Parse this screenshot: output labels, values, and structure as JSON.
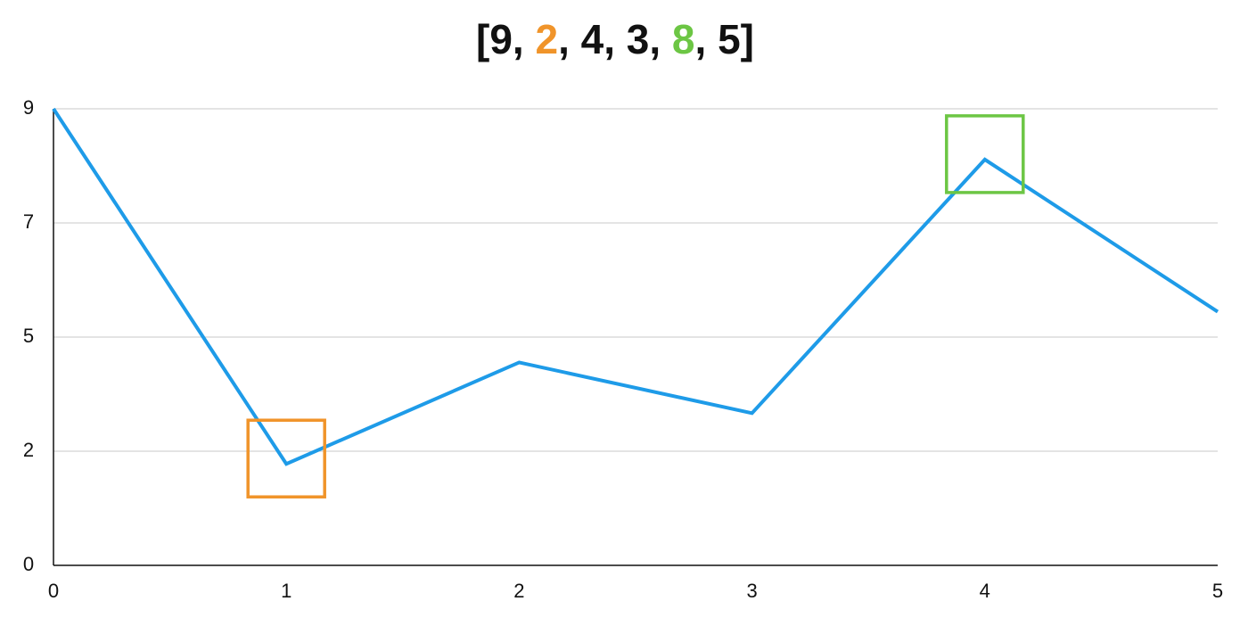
{
  "chart_data": {
    "type": "line",
    "title": [
      {
        "text": "[9, ",
        "color": "#111111"
      },
      {
        "text": "2",
        "color": "#f0942a"
      },
      {
        "text": ", 4, 3, ",
        "color": "#111111"
      },
      {
        "text": "8",
        "color": "#6cc644"
      },
      {
        "text": ", 5]",
        "color": "#111111"
      }
    ],
    "x": [
      0,
      1,
      2,
      3,
      4,
      5
    ],
    "series": [
      {
        "color": "#1e9be8",
        "values": [
          9,
          2,
          4,
          3,
          8,
          5
        ]
      }
    ],
    "highlights": [
      {
        "index": 1,
        "color": "#f0942a"
      },
      {
        "index": 4,
        "color": "#6cc644"
      }
    ],
    "xlim": [
      0,
      5
    ],
    "xticks": [
      0,
      1,
      2,
      3,
      4,
      5
    ],
    "ylim": [
      0,
      9
    ],
    "yticks": [
      0,
      {
        "value": 2.25,
        "label": "2"
      },
      {
        "value": 4.5,
        "label": "5"
      },
      {
        "value": 6.75,
        "label": "7"
      },
      9
    ],
    "grid": true
  }
}
